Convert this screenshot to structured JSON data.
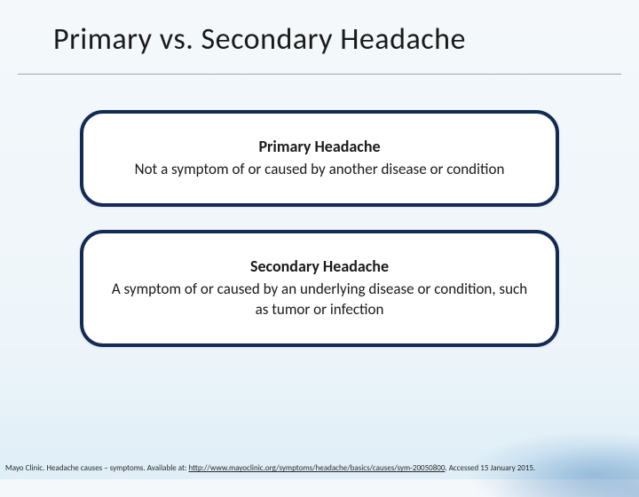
{
  "slide": {
    "title": "Primary vs. Secondary Headache",
    "title_fontsize": 34,
    "title_color": "#1a1a1a",
    "background_gradient": [
      "#f4f8fb",
      "#eef5fa",
      "#dfeef7"
    ],
    "divider_color": "#9aa7b0",
    "cards": [
      {
        "heading": "Primary Headache",
        "description": "Not a symptom of or caused by another disease or condition",
        "background_color": "#ffffff",
        "border_color": "#132a55",
        "border_width": 4,
        "border_radius": 26,
        "heading_fontsize": 18,
        "desc_fontsize": 17,
        "text_color": "#1a1a1a"
      },
      {
        "heading": "Secondary Headache",
        "description": "A symptom of or caused by an underlying disease or condition, such as tumor or infection",
        "background_color": "#ffffff",
        "border_color": "#132a55",
        "border_width": 4,
        "border_radius": 26,
        "heading_fontsize": 18,
        "desc_fontsize": 17,
        "text_color": "#1a1a1a"
      }
    ],
    "citation": {
      "prefix": "Mayo Clinic. Headache causes – symptoms. Available at: ",
      "link": "http://www.mayoclinic.org/symptoms/headache/basics/causes/sym-20050800",
      "suffix": ". Accessed 15 January 2015.",
      "fontsize": 9,
      "color": "#2a2a2a"
    }
  }
}
